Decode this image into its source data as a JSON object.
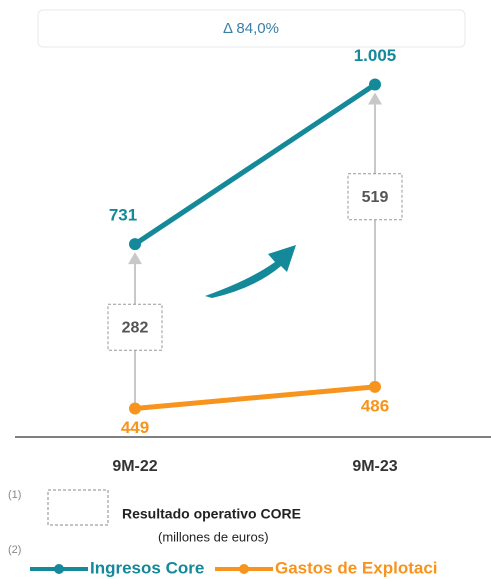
{
  "chart_data": {
    "type": "line",
    "change_label": "Δ 84,0%",
    "categories": [
      "9M-22",
      "9M-23"
    ],
    "series": [
      {
        "name": "Ingresos Core",
        "color": "#13899a",
        "values": [
          731,
          1005
        ],
        "value_labels": [
          "731",
          "1.005"
        ]
      },
      {
        "name": "Gastos de Explotaci",
        "color": "#f7941d",
        "values": [
          449,
          486
        ]
      }
    ],
    "differences": [
      282,
      519
    ],
    "ylim": [
      400,
      1150
    ],
    "notes": [
      {
        "marker": "(1)",
        "label": "Resultado operativo CORE"
      },
      {
        "marker": "(2)",
        "label": "(millones  de euros)"
      }
    ]
  }
}
